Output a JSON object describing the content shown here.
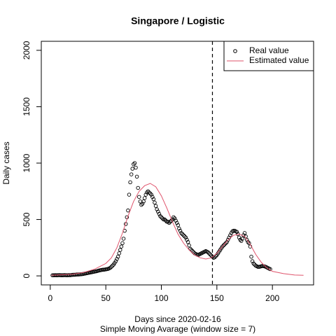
{
  "chart_data": {
    "type": "scatter",
    "title": "Singapore / Logistic",
    "xlabel": "Days since 2020-02-16",
    "subtitle": "Simple Moving Avarage (window size = 7)",
    "ylabel": "Daily cases",
    "xlim": [
      -8.08,
      237.08
    ],
    "ylim": [
      -80,
      2080
    ],
    "xticks": [
      0,
      50,
      100,
      150,
      200
    ],
    "yticks": [
      0,
      500,
      1000,
      1500,
      2000
    ],
    "vline": 146,
    "legend": "top-right",
    "series": [
      {
        "name": "Real value",
        "color": "#000000",
        "kind": "points",
        "x": [
          2,
          3,
          4,
          5,
          6,
          7,
          8,
          9,
          10,
          11,
          12,
          13,
          14,
          15,
          16,
          17,
          18,
          19,
          20,
          21,
          22,
          23,
          24,
          25,
          26,
          27,
          28,
          29,
          30,
          31,
          32,
          33,
          34,
          35,
          36,
          37,
          38,
          39,
          40,
          41,
          42,
          43,
          44,
          45,
          46,
          47,
          48,
          49,
          50,
          51,
          52,
          53,
          54,
          55,
          56,
          57,
          58,
          59,
          60,
          61,
          62,
          63,
          64,
          65,
          66,
          67,
          68,
          69,
          70,
          71,
          72,
          73,
          74,
          75,
          76,
          77,
          78,
          79,
          80,
          81,
          82,
          83,
          84,
          85,
          86,
          87,
          88,
          89,
          90,
          91,
          92,
          93,
          94,
          95,
          96,
          97,
          98,
          99,
          100,
          101,
          102,
          103,
          104,
          105,
          106,
          107,
          108,
          109,
          110,
          111,
          112,
          113,
          114,
          115,
          116,
          117,
          118,
          119,
          120,
          121,
          122,
          123,
          124,
          125,
          126,
          127,
          128,
          129,
          130,
          131,
          132,
          133,
          134,
          135,
          136,
          137,
          138,
          139,
          140,
          141,
          142,
          143,
          144,
          145,
          146,
          147,
          148,
          149,
          150,
          151,
          152,
          153,
          154,
          155,
          156,
          157,
          158,
          159,
          160,
          161,
          162,
          163,
          164,
          165,
          166,
          167,
          168,
          169,
          170,
          171,
          172,
          173,
          174,
          175,
          176,
          177,
          178,
          179,
          180,
          181,
          182,
          183,
          184,
          185,
          186,
          187,
          188,
          189,
          190,
          191,
          192,
          193,
          194,
          195,
          196,
          197,
          198
        ],
        "values": [
          5,
          5,
          6,
          6,
          5,
          6,
          7,
          6,
          5,
          5,
          6,
          7,
          6,
          5,
          6,
          7,
          6,
          8,
          9,
          10,
          10,
          11,
          12,
          12,
          13,
          14,
          15,
          16,
          18,
          20,
          22,
          24,
          26,
          28,
          30,
          32,
          34,
          36,
          38,
          40,
          42,
          45,
          48,
          50,
          52,
          54,
          55,
          56,
          58,
          60,
          62,
          66,
          72,
          80,
          90,
          100,
          115,
          130,
          150,
          170,
          200,
          230,
          260,
          290,
          330,
          400,
          460,
          520,
          580,
          720,
          830,
          900,
          950,
          990,
          1000,
          960,
          880,
          780,
          700,
          660,
          630,
          640,
          660,
          690,
          720,
          740,
          750,
          740,
          730,
          720,
          700,
          680,
          650,
          620,
          590,
          570,
          550,
          530,
          520,
          510,
          500,
          500,
          490,
          480,
          480,
          470,
          480,
          490,
          500,
          520,
          510,
          490,
          470,
          450,
          420,
          400,
          380,
          370,
          360,
          350,
          340,
          320,
          300,
          270,
          240,
          230,
          220,
          210,
          200,
          195,
          190,
          185,
          190,
          195,
          200,
          205,
          210,
          215,
          220,
          215,
          210,
          200,
          190,
          180,
          170,
          160,
          165,
          175,
          185,
          200,
          215,
          230,
          245,
          260,
          270,
          280,
          290,
          300,
          320,
          340,
          360,
          380,
          395,
          400,
          400,
          395,
          390,
          370,
          340,
          320,
          310,
          330,
          360,
          380,
          350,
          320,
          300,
          290,
          260,
          170,
          130,
          110,
          100,
          90,
          85,
          80,
          80,
          82,
          85,
          88,
          86,
          84,
          80,
          75,
          70,
          65,
          60
        ]
      },
      {
        "name": "Estimated value",
        "color": "#DF536B",
        "kind": "line",
        "x": [
          1,
          10,
          20,
          30,
          40,
          50,
          55,
          60,
          65,
          70,
          75,
          80,
          85,
          90,
          95,
          100,
          105,
          110,
          115,
          120,
          125,
          130,
          135,
          140,
          145,
          150,
          155,
          160,
          165,
          170,
          175,
          180,
          185,
          190,
          195,
          200,
          210,
          220,
          228
        ],
        "values": [
          5,
          10,
          15,
          30,
          60,
          110,
          160,
          250,
          380,
          530,
          660,
          750,
          800,
          820,
          790,
          710,
          600,
          480,
          370,
          290,
          230,
          185,
          160,
          150,
          160,
          200,
          260,
          320,
          360,
          370,
          350,
          280,
          190,
          120,
          70,
          40,
          20,
          8,
          5
        ]
      }
    ]
  }
}
